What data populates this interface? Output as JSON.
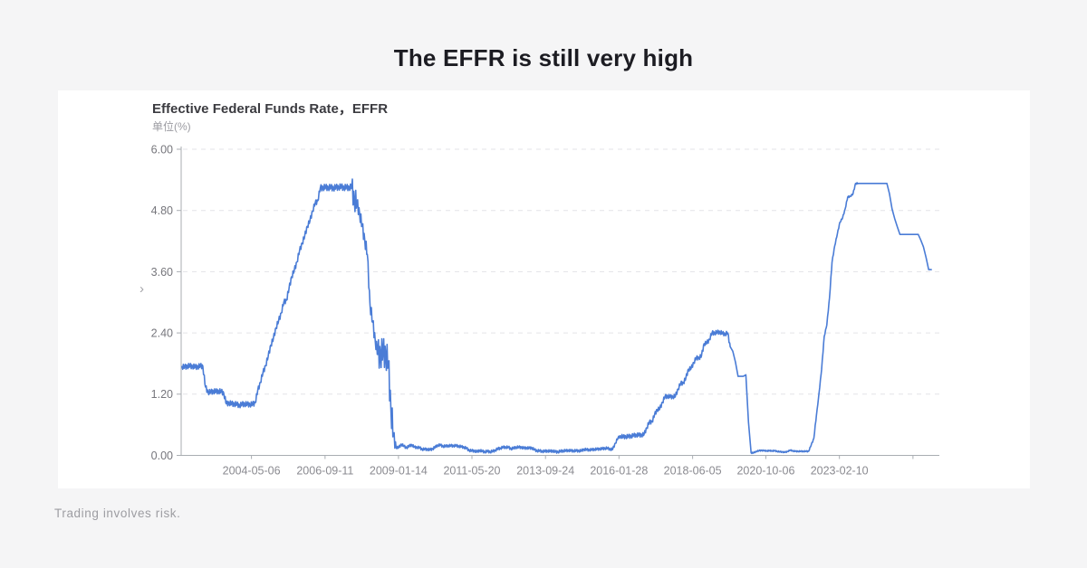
{
  "page": {
    "title": "The EFFR is still very high",
    "disclaimer": "Trading involves risk."
  },
  "icons": {
    "chevron_right": "›"
  },
  "colors": {
    "page_bg": "#f5f5f6",
    "card_bg": "#ffffff",
    "line": "#4a7cd6",
    "grid": "#e3e3e7",
    "axis": "#a9adb2",
    "y_tick_text": "#76767c",
    "x_tick_text": "#8a8a90",
    "title_text": "#1c1c22"
  },
  "chart": {
    "title": "Effective Federal Funds Rate，EFFR",
    "unit_label": "单位(%)"
  },
  "chart_data": {
    "type": "line",
    "title": "Effective Federal Funds Rate，EFFR",
    "ylabel": "单位(%)",
    "series_name": "EFFR",
    "legend": "none",
    "grid": "dashed-horizontal",
    "ylim": [
      0,
      6
    ],
    "x_range": [
      2002.1,
      2026.3
    ],
    "y_ticks": [
      {
        "label": "0.00",
        "value": 0.0
      },
      {
        "label": "1.20",
        "value": 1.2
      },
      {
        "label": "2.40",
        "value": 2.4
      },
      {
        "label": "3.60",
        "value": 3.6
      },
      {
        "label": "4.80",
        "value": 4.8
      },
      {
        "label": "6.00",
        "value": 6.0
      }
    ],
    "x_ticks": [
      {
        "label": "2004-05-06",
        "t": 2004.344
      },
      {
        "label": "2006-09-11",
        "t": 2006.693
      },
      {
        "label": "2009-01-14",
        "t": 2009.036
      },
      {
        "label": "2011-05-20",
        "t": 2011.381
      },
      {
        "label": "2013-09-24",
        "t": 2013.729
      },
      {
        "label": "2016-01-28",
        "t": 2016.074
      },
      {
        "label": "2018-06-05",
        "t": 2018.425
      },
      {
        "label": "2020-10-06",
        "t": 2020.762
      },
      {
        "label": "2023-02-10",
        "t": 2023.11
      },
      {
        "label": "",
        "t": 2025.458
      }
    ],
    "start_month": "2002-02",
    "monthly_values": [
      1.74,
      1.73,
      1.75,
      1.75,
      1.75,
      1.73,
      1.74,
      1.75,
      1.75,
      1.34,
      1.24,
      1.24,
      1.26,
      1.25,
      1.26,
      1.25,
      1.22,
      1.01,
      1.03,
      1.01,
      1.01,
      1.0,
      0.98,
      1.0,
      1.01,
      1.0,
      1.0,
      1.0,
      1.03,
      1.26,
      1.43,
      1.61,
      1.76,
      1.93,
      2.16,
      2.28,
      2.5,
      2.63,
      2.79,
      3.0,
      3.04,
      3.26,
      3.5,
      3.62,
      3.79,
      4.0,
      4.16,
      4.29,
      4.49,
      4.59,
      4.79,
      4.94,
      4.99,
      5.24,
      5.25,
      5.25,
      5.25,
      5.25,
      5.24,
      5.25,
      5.26,
      5.26,
      5.25,
      5.25,
      5.25,
      5.26,
      5.02,
      4.94,
      4.76,
      4.49,
      4.24,
      3.94,
      2.98,
      2.61,
      2.28,
      1.98,
      2.0,
      2.01,
      2.0,
      1.81,
      0.97,
      0.39,
      0.16,
      0.15,
      0.22,
      0.18,
      0.15,
      0.18,
      0.21,
      0.16,
      0.16,
      0.15,
      0.12,
      0.12,
      0.12,
      0.11,
      0.13,
      0.16,
      0.2,
      0.2,
      0.18,
      0.18,
      0.19,
      0.19,
      0.19,
      0.19,
      0.18,
      0.17,
      0.16,
      0.14,
      0.1,
      0.09,
      0.09,
      0.07,
      0.1,
      0.08,
      0.07,
      0.08,
      0.07,
      0.08,
      0.1,
      0.13,
      0.14,
      0.16,
      0.16,
      0.16,
      0.13,
      0.14,
      0.16,
      0.16,
      0.16,
      0.14,
      0.15,
      0.14,
      0.15,
      0.11,
      0.09,
      0.09,
      0.08,
      0.08,
      0.09,
      0.08,
      0.09,
      0.07,
      0.07,
      0.08,
      0.09,
      0.09,
      0.1,
      0.09,
      0.09,
      0.09,
      0.09,
      0.09,
      0.12,
      0.11,
      0.11,
      0.11,
      0.12,
      0.12,
      0.13,
      0.13,
      0.14,
      0.14,
      0.12,
      0.12,
      0.24,
      0.34,
      0.38,
      0.36,
      0.37,
      0.37,
      0.38,
      0.39,
      0.4,
      0.4,
      0.4,
      0.41,
      0.54,
      0.65,
      0.66,
      0.79,
      0.9,
      0.91,
      1.04,
      1.15,
      1.16,
      1.15,
      1.15,
      1.16,
      1.3,
      1.41,
      1.42,
      1.51,
      1.69,
      1.7,
      1.82,
      1.91,
      1.91,
      1.95,
      2.19,
      2.2,
      2.27,
      2.4,
      2.4,
      2.41,
      2.42,
      2.39,
      2.38,
      2.4,
      2.13,
      2.04,
      1.83,
      1.55,
      1.55,
      1.55,
      1.58,
      0.65,
      0.05,
      0.05,
      0.08,
      0.09,
      0.1,
      0.09,
      0.09,
      0.09,
      0.09,
      0.09,
      0.08,
      0.07,
      0.07,
      0.06,
      0.08,
      0.1,
      0.09,
      0.08,
      0.08,
      0.08,
      0.08,
      0.08,
      0.08,
      0.2,
      0.33,
      0.77,
      1.21,
      1.68,
      2.33,
      2.56,
      3.08,
      3.78,
      4.1,
      4.33,
      4.57,
      4.65,
      4.83,
      5.06,
      5.08,
      5.12,
      5.33,
      5.33,
      5.33,
      5.33,
      5.33,
      5.33,
      5.33,
      5.33,
      5.33,
      5.33,
      5.33,
      5.33,
      5.33,
      5.13,
      4.83,
      4.64,
      4.48,
      4.33,
      4.33,
      4.33,
      4.33,
      4.33,
      4.33,
      4.33,
      4.33,
      4.22,
      4.09,
      3.88,
      3.64,
      3.64
    ],
    "noise_eras": [
      {
        "from": 2007.55,
        "to": 2007.7,
        "amp": 0.22
      },
      {
        "from": 2008.35,
        "to": 2008.85,
        "amp": 0.28
      },
      {
        "from": 2002.1,
        "to": 2004.55,
        "amp": 0.05
      },
      {
        "from": 2004.55,
        "to": 2006.55,
        "amp": 0.05
      },
      {
        "from": 2006.55,
        "to": 2007.75,
        "amp": 0.06
      },
      {
        "from": 2007.75,
        "to": 2009.0,
        "amp": 0.12
      },
      {
        "from": 2009.0,
        "to": 2016.1,
        "amp": 0.025
      },
      {
        "from": 2016.1,
        "to": 2019.6,
        "amp": 0.04
      },
      {
        "from": 2020.3,
        "to": 2022.25,
        "amp": 0.012
      },
      {
        "from": 2022.25,
        "to": 2023.7,
        "amp": 0.015
      }
    ]
  }
}
